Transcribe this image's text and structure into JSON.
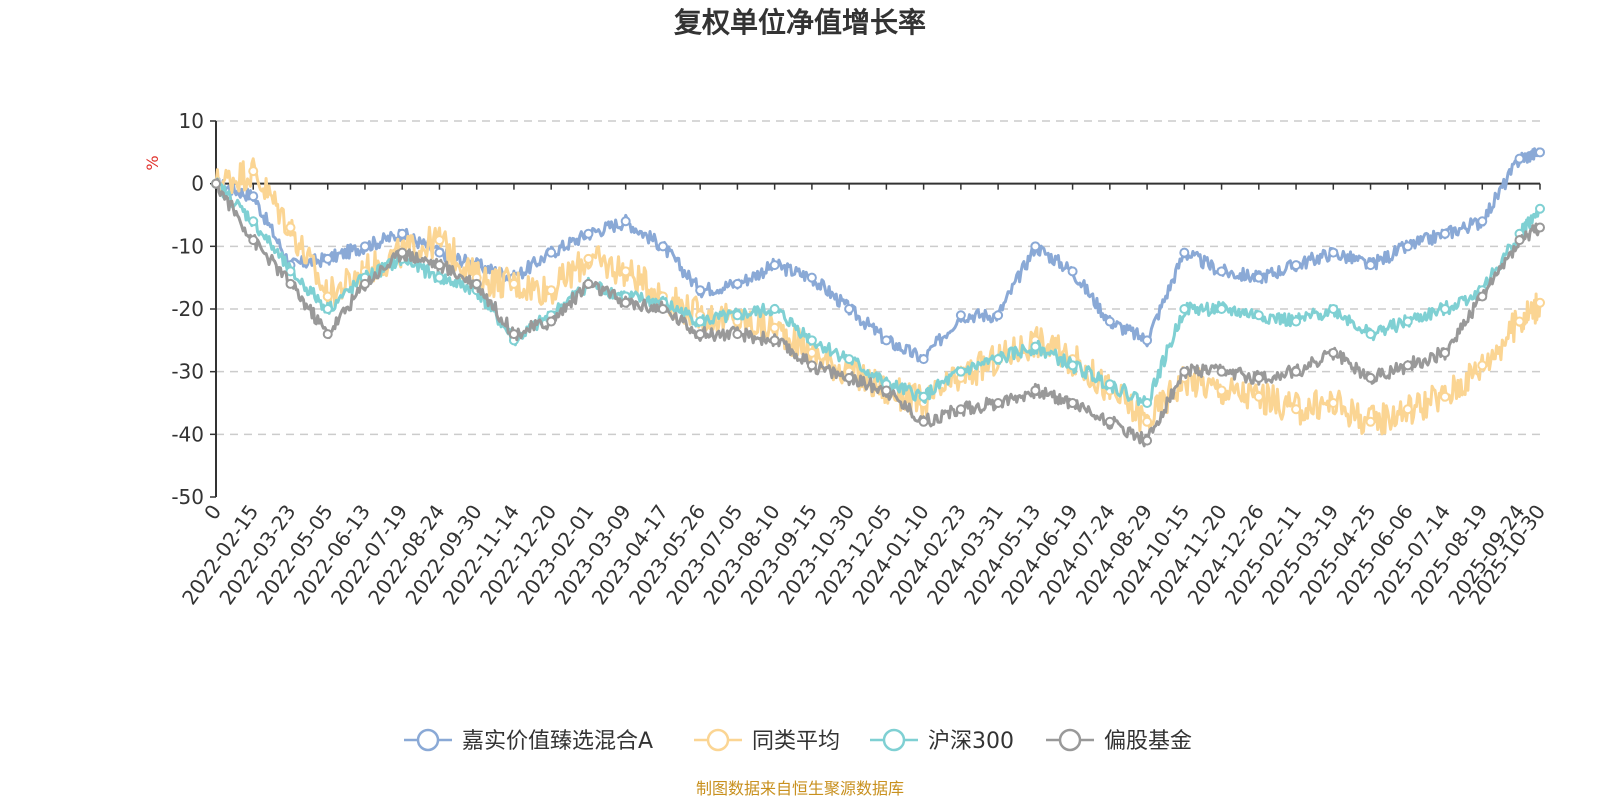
{
  "chart_data": {
    "type": "line",
    "title": "复权单位净值增长率",
    "ylabel": "%",
    "ylim": [
      -50,
      10
    ],
    "yticks": [
      "10",
      "0",
      "-10",
      "-20",
      "-30",
      "-40",
      "-50"
    ],
    "x_labels": [
      "0",
      "2022-02-15",
      "2022-03-23",
      "2022-05-05",
      "2022-06-13",
      "2022-07-19",
      "2022-08-24",
      "2022-09-30",
      "2022-11-14",
      "2022-12-20",
      "2023-02-01",
      "2023-03-09",
      "2023-04-17",
      "2023-05-26",
      "2023-07-05",
      "2023-08-10",
      "2023-09-15",
      "2023-10-30",
      "2023-12-05",
      "2024-01-10",
      "2024-02-23",
      "2024-03-31",
      "2024-05-13",
      "2024-06-19",
      "2024-07-24",
      "2024-08-29",
      "2024-10-15",
      "2024-11-20",
      "2024-12-26",
      "2025-02-11",
      "2025-03-19",
      "2025-04-25",
      "2025-06-06",
      "2025-07-14",
      "2025-08-19",
      "2025-09-24",
      "2025-10-30"
    ],
    "x_index": [
      0,
      1,
      2,
      3,
      4,
      5,
      6,
      7,
      8,
      9,
      10,
      11,
      12,
      13,
      14,
      15,
      16,
      17,
      18,
      19,
      20,
      21,
      22,
      23,
      24,
      25,
      26,
      27,
      28,
      29,
      30,
      31,
      32,
      33,
      34,
      35,
      35.55
    ],
    "grid": true,
    "legend_position": "bottom",
    "source": "制图数据来自恒生聚源数据库",
    "series": [
      {
        "name": "嘉实价值臻选混合A",
        "color": "#8aa9d6",
        "values": [
          0,
          -2,
          -13,
          -12,
          -10,
          -8,
          -11,
          -13,
          -15,
          -11,
          -8,
          -6,
          -10,
          -17,
          -16,
          -13,
          -15,
          -20,
          -25,
          -28,
          -21,
          -21,
          -10,
          -14,
          -22,
          -25,
          -11,
          -14,
          -15,
          -13,
          -11,
          -13,
          -10,
          -8,
          -6,
          4,
          5
        ]
      },
      {
        "name": "同类平均",
        "color": "#fbd593",
        "values": [
          0,
          2,
          -7,
          -18,
          -14,
          -11,
          -9,
          -15,
          -16,
          -17,
          -12,
          -14,
          -18,
          -21,
          -22,
          -23,
          -27,
          -30,
          -33,
          -35,
          -31,
          -28,
          -25,
          -28,
          -33,
          -38,
          -31,
          -33,
          -34,
          -36,
          -35,
          -38,
          -36,
          -34,
          -29,
          -22,
          -19
        ]
      },
      {
        "name": "沪深300",
        "color": "#7fd0d3",
        "values": [
          0,
          -6,
          -14,
          -20,
          -15,
          -12,
          -15,
          -17,
          -25,
          -21,
          -16,
          -18,
          -19,
          -22,
          -21,
          -20,
          -25,
          -28,
          -32,
          -34,
          -30,
          -28,
          -26,
          -29,
          -32,
          -35,
          -20,
          -20,
          -21,
          -22,
          -20,
          -24,
          -22,
          -20,
          -17,
          -8,
          -4
        ]
      },
      {
        "name": "偏股基金",
        "color": "#999999",
        "values": [
          0,
          -9,
          -16,
          -24,
          -16,
          -11,
          -13,
          -16,
          -24,
          -22,
          -16,
          -19,
          -20,
          -24,
          -24,
          -25,
          -29,
          -31,
          -33,
          -38,
          -36,
          -35,
          -33,
          -35,
          -38,
          -41,
          -30,
          -30,
          -31,
          -30,
          -27,
          -31,
          -29,
          -27,
          -18,
          -9,
          -7
        ]
      }
    ]
  }
}
